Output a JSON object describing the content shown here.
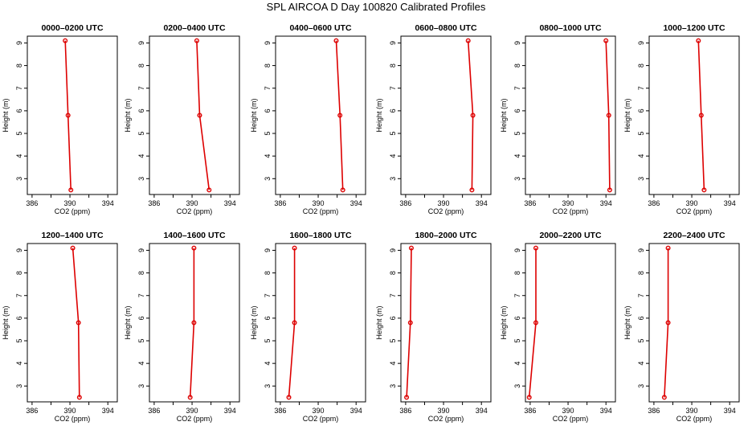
{
  "title": "SPL AIRCOA D  Day 100820  Calibrated Profiles",
  "colors": {
    "series": "#dd0000",
    "axis": "#000000"
  },
  "chart_data": [
    {
      "type": "line",
      "title": "0000–0200 UTC",
      "xlabel": "CO2 (ppm)",
      "ylabel": "Height (m)",
      "xlim": [
        385.5,
        395
      ],
      "ylim": [
        2.3,
        9.3
      ],
      "xticks": [
        386,
        388,
        390,
        392,
        394
      ],
      "xtick_labels": [
        "386",
        "390",
        "394"
      ],
      "yticks": [
        3,
        4,
        5,
        6,
        7,
        8,
        9
      ],
      "grid": false,
      "points": [
        {
          "x": 389.5,
          "y": 9.1
        },
        {
          "x": 389.8,
          "y": 5.8
        },
        {
          "x": 390.1,
          "y": 2.5
        }
      ]
    },
    {
      "type": "line",
      "title": "0200–0400 UTC",
      "xlabel": "CO2 (ppm)",
      "ylabel": "Height (m)",
      "xlim": [
        385.5,
        395
      ],
      "ylim": [
        2.3,
        9.3
      ],
      "xticks": [
        386,
        388,
        390,
        392,
        394
      ],
      "xtick_labels": [
        "386",
        "390",
        "394"
      ],
      "yticks": [
        3,
        4,
        5,
        6,
        7,
        8,
        9
      ],
      "grid": false,
      "points": [
        {
          "x": 390.5,
          "y": 9.1
        },
        {
          "x": 390.8,
          "y": 5.8
        },
        {
          "x": 391.8,
          "y": 2.5
        }
      ]
    },
    {
      "type": "line",
      "title": "0400–0600 UTC",
      "xlabel": "CO2 (ppm)",
      "ylabel": "Height (m)",
      "xlim": [
        385.5,
        395
      ],
      "ylim": [
        2.3,
        9.3
      ],
      "xticks": [
        386,
        388,
        390,
        392,
        394
      ],
      "xtick_labels": [
        "386",
        "390",
        "394"
      ],
      "yticks": [
        3,
        4,
        5,
        6,
        7,
        8,
        9
      ],
      "grid": false,
      "points": [
        {
          "x": 391.9,
          "y": 9.1
        },
        {
          "x": 392.3,
          "y": 5.8
        },
        {
          "x": 392.6,
          "y": 2.5
        }
      ]
    },
    {
      "type": "line",
      "title": "0600–0800 UTC",
      "xlabel": "CO2 (ppm)",
      "ylabel": "Height (m)",
      "xlim": [
        385.5,
        395
      ],
      "ylim": [
        2.3,
        9.3
      ],
      "xticks": [
        386,
        388,
        390,
        392,
        394
      ],
      "xtick_labels": [
        "386",
        "390",
        "394"
      ],
      "yticks": [
        3,
        4,
        5,
        6,
        7,
        8,
        9
      ],
      "grid": false,
      "points": [
        {
          "x": 392.6,
          "y": 9.1
        },
        {
          "x": 393.1,
          "y": 5.8
        },
        {
          "x": 393.0,
          "y": 2.5
        }
      ]
    },
    {
      "type": "line",
      "title": "0800–1000 UTC",
      "xlabel": "CO2 (ppm)",
      "ylabel": "Height (m)",
      "xlim": [
        385.5,
        395
      ],
      "ylim": [
        2.3,
        9.3
      ],
      "xticks": [
        386,
        388,
        390,
        392,
        394
      ],
      "xtick_labels": [
        "386",
        "390",
        "394"
      ],
      "yticks": [
        3,
        4,
        5,
        6,
        7,
        8,
        9
      ],
      "grid": false,
      "points": [
        {
          "x": 394.0,
          "y": 9.1
        },
        {
          "x": 394.3,
          "y": 5.8
        },
        {
          "x": 394.4,
          "y": 2.5
        }
      ]
    },
    {
      "type": "line",
      "title": "1000–1200 UTC",
      "xlabel": "CO2 (ppm)",
      "ylabel": "Height (m)",
      "xlim": [
        385.5,
        395
      ],
      "ylim": [
        2.3,
        9.3
      ],
      "xticks": [
        386,
        388,
        390,
        392,
        394
      ],
      "xtick_labels": [
        "386",
        "390",
        "394"
      ],
      "yticks": [
        3,
        4,
        5,
        6,
        7,
        8,
        9
      ],
      "grid": false,
      "points": [
        {
          "x": 390.7,
          "y": 9.1
        },
        {
          "x": 391.0,
          "y": 5.8
        },
        {
          "x": 391.3,
          "y": 2.5
        }
      ]
    },
    {
      "type": "line",
      "title": "1200–1400 UTC",
      "xlabel": "CO2 (ppm)",
      "ylabel": "Height (m)",
      "xlim": [
        385.5,
        395
      ],
      "ylim": [
        2.3,
        9.3
      ],
      "xticks": [
        386,
        388,
        390,
        392,
        394
      ],
      "xtick_labels": [
        "386",
        "390",
        "394"
      ],
      "yticks": [
        3,
        4,
        5,
        6,
        7,
        8,
        9
      ],
      "grid": false,
      "points": [
        {
          "x": 390.3,
          "y": 9.1
        },
        {
          "x": 390.9,
          "y": 5.8
        },
        {
          "x": 391.0,
          "y": 2.5
        }
      ]
    },
    {
      "type": "line",
      "title": "1400–1600 UTC",
      "xlabel": "CO2 (ppm)",
      "ylabel": "Height (m)",
      "xlim": [
        385.5,
        395
      ],
      "ylim": [
        2.3,
        9.3
      ],
      "xticks": [
        386,
        388,
        390,
        392,
        394
      ],
      "xtick_labels": [
        "386",
        "390",
        "394"
      ],
      "yticks": [
        3,
        4,
        5,
        6,
        7,
        8,
        9
      ],
      "grid": false,
      "points": [
        {
          "x": 390.2,
          "y": 9.1
        },
        {
          "x": 390.2,
          "y": 5.8
        },
        {
          "x": 389.8,
          "y": 2.5
        }
      ]
    },
    {
      "type": "line",
      "title": "1600–1800 UTC",
      "xlabel": "CO2 (ppm)",
      "ylabel": "Height (m)",
      "xlim": [
        385.5,
        395
      ],
      "ylim": [
        2.3,
        9.3
      ],
      "xticks": [
        386,
        388,
        390,
        392,
        394
      ],
      "xtick_labels": [
        "386",
        "390",
        "394"
      ],
      "yticks": [
        3,
        4,
        5,
        6,
        7,
        8,
        9
      ],
      "grid": false,
      "points": [
        {
          "x": 387.5,
          "y": 9.1
        },
        {
          "x": 387.5,
          "y": 5.8
        },
        {
          "x": 386.9,
          "y": 2.5
        }
      ]
    },
    {
      "type": "line",
      "title": "1800–2000 UTC",
      "xlabel": "CO2 (ppm)",
      "ylabel": "Height (m)",
      "xlim": [
        385.5,
        395
      ],
      "ylim": [
        2.3,
        9.3
      ],
      "xticks": [
        386,
        388,
        390,
        392,
        394
      ],
      "xtick_labels": [
        "386",
        "390",
        "394"
      ],
      "yticks": [
        3,
        4,
        5,
        6,
        7,
        8,
        9
      ],
      "grid": false,
      "points": [
        {
          "x": 386.6,
          "y": 9.1
        },
        {
          "x": 386.5,
          "y": 5.8
        },
        {
          "x": 386.1,
          "y": 2.5
        }
      ]
    },
    {
      "type": "line",
      "title": "2000–2200 UTC",
      "xlabel": "CO2 (ppm)",
      "ylabel": "Height (m)",
      "xlim": [
        385.5,
        395
      ],
      "ylim": [
        2.3,
        9.3
      ],
      "xticks": [
        386,
        388,
        390,
        392,
        394
      ],
      "xtick_labels": [
        "386",
        "390",
        "394"
      ],
      "yticks": [
        3,
        4,
        5,
        6,
        7,
        8,
        9
      ],
      "grid": false,
      "points": [
        {
          "x": 386.6,
          "y": 9.1
        },
        {
          "x": 386.6,
          "y": 5.8
        },
        {
          "x": 385.9,
          "y": 2.5
        }
      ]
    },
    {
      "type": "line",
      "title": "2200–2400 UTC",
      "xlabel": "CO2 (ppm)",
      "ylabel": "Height (m)",
      "xlim": [
        385.5,
        395
      ],
      "ylim": [
        2.3,
        9.3
      ],
      "xticks": [
        386,
        388,
        390,
        392,
        394
      ],
      "xtick_labels": [
        "386",
        "390",
        "394"
      ],
      "yticks": [
        3,
        4,
        5,
        6,
        7,
        8,
        9
      ],
      "grid": false,
      "points": [
        {
          "x": 387.5,
          "y": 9.1
        },
        {
          "x": 387.5,
          "y": 5.8
        },
        {
          "x": 387.1,
          "y": 2.5
        }
      ]
    }
  ]
}
